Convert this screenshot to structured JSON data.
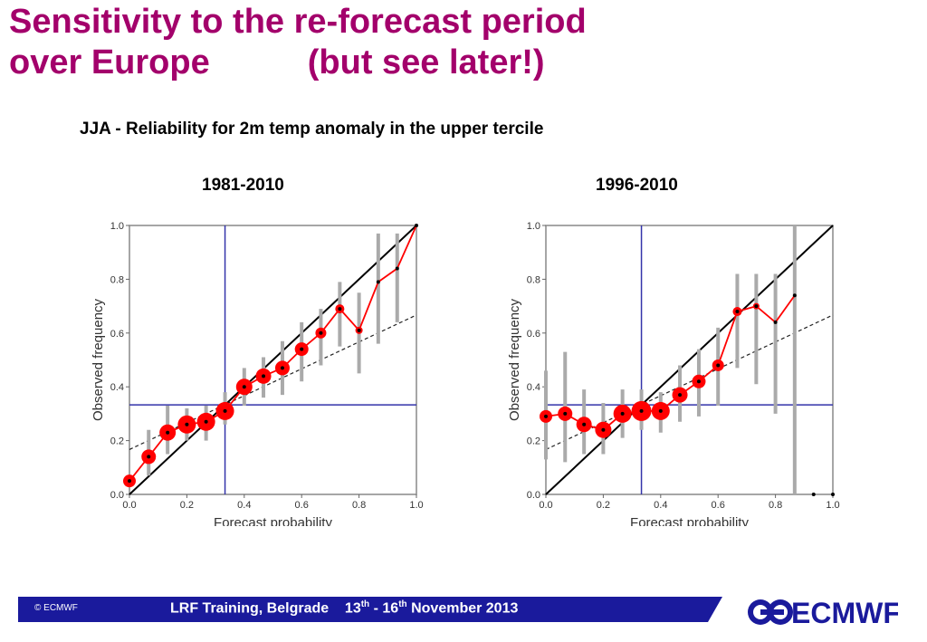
{
  "title": {
    "line1": "Sensitivity to the re-forecast period",
    "line2a": "over Europe",
    "line2b": "(but see later!)"
  },
  "subtitle": "JJA - Reliability for 2m temp anomaly  in the upper tercile",
  "footer": {
    "copyright": "© ECMWF",
    "event": "LRF Training, Belgrade",
    "date_start": "13",
    "date_start_sup": "th",
    "date_sep": " - ",
    "date_end": "16",
    "date_end_sup": "th",
    "date_rest": " November 2013",
    "logo_text": "ECMWF"
  },
  "colors": {
    "title": "#a3006b",
    "footer_bar": "#1a1a9c",
    "reliability_line": "#ff0000",
    "diagonal": "#000000",
    "climatology": "#3333aa",
    "error_bar": "#aaaaaa"
  },
  "chart_data": [
    {
      "type": "scatter",
      "period": "1981-2010",
      "xlabel": "Forecast probability",
      "ylabel": "Observed frequency",
      "xlim": [
        0,
        1
      ],
      "ylim": [
        0,
        1
      ],
      "xticks": [
        "0.0",
        "0.2",
        "0.4",
        "0.6",
        "0.8",
        "1.0"
      ],
      "yticks": [
        "0.0",
        "0.2",
        "0.4",
        "0.6",
        "0.8",
        "1.0"
      ],
      "climatology": 0.333,
      "no_skill_line": [
        [
          0,
          0.167
        ],
        [
          1,
          0.667
        ]
      ],
      "points": [
        {
          "x": 0.0,
          "y": 0.05,
          "lo": 0.04,
          "hi": 0.06,
          "size": 7
        },
        {
          "x": 0.067,
          "y": 0.14,
          "lo": 0.07,
          "hi": 0.24,
          "size": 8
        },
        {
          "x": 0.133,
          "y": 0.23,
          "lo": 0.15,
          "hi": 0.33,
          "size": 9
        },
        {
          "x": 0.2,
          "y": 0.26,
          "lo": 0.2,
          "hi": 0.32,
          "size": 10
        },
        {
          "x": 0.267,
          "y": 0.27,
          "lo": 0.2,
          "hi": 0.33,
          "size": 10
        },
        {
          "x": 0.333,
          "y": 0.31,
          "lo": 0.26,
          "hi": 0.38,
          "size": 10
        },
        {
          "x": 0.4,
          "y": 0.4,
          "lo": 0.33,
          "hi": 0.47,
          "size": 9
        },
        {
          "x": 0.467,
          "y": 0.44,
          "lo": 0.36,
          "hi": 0.51,
          "size": 8.5
        },
        {
          "x": 0.533,
          "y": 0.47,
          "lo": 0.37,
          "hi": 0.57,
          "size": 8
        },
        {
          "x": 0.6,
          "y": 0.54,
          "lo": 0.42,
          "hi": 0.64,
          "size": 7.5
        },
        {
          "x": 0.667,
          "y": 0.6,
          "lo": 0.48,
          "hi": 0.69,
          "size": 6
        },
        {
          "x": 0.733,
          "y": 0.69,
          "lo": 0.55,
          "hi": 0.79,
          "size": 5
        },
        {
          "x": 0.8,
          "y": 0.61,
          "lo": 0.45,
          "hi": 0.75,
          "size": 4
        },
        {
          "x": 0.867,
          "y": 0.79,
          "lo": 0.56,
          "hi": 0.97,
          "size": 2
        },
        {
          "x": 0.933,
          "y": 0.84,
          "lo": 0.64,
          "hi": 0.97,
          "size": 2
        },
        {
          "x": 1.0,
          "y": 1.0,
          "lo": 1.0,
          "hi": 1.0,
          "size": 2
        }
      ]
    },
    {
      "type": "scatter",
      "period": "1996-2010",
      "xlabel": "Forecast probability",
      "ylabel": "Observed frequency",
      "xlim": [
        0,
        1
      ],
      "ylim": [
        0,
        1
      ],
      "xticks": [
        "0.0",
        "0.2",
        "0.4",
        "0.6",
        "0.8",
        "1.0"
      ],
      "yticks": [
        "0.0",
        "0.2",
        "0.4",
        "0.6",
        "0.8",
        "1.0"
      ],
      "climatology": 0.333,
      "no_skill_line": [
        [
          0,
          0.167
        ],
        [
          1,
          0.667
        ]
      ],
      "points": [
        {
          "x": 0.0,
          "y": 0.29,
          "lo": 0.13,
          "hi": 0.46,
          "size": 7
        },
        {
          "x": 0.067,
          "y": 0.3,
          "lo": 0.12,
          "hi": 0.53,
          "size": 8
        },
        {
          "x": 0.133,
          "y": 0.26,
          "lo": 0.15,
          "hi": 0.39,
          "size": 8.5
        },
        {
          "x": 0.2,
          "y": 0.24,
          "lo": 0.15,
          "hi": 0.34,
          "size": 9
        },
        {
          "x": 0.267,
          "y": 0.3,
          "lo": 0.21,
          "hi": 0.39,
          "size": 10
        },
        {
          "x": 0.333,
          "y": 0.31,
          "lo": 0.24,
          "hi": 0.39,
          "size": 11
        },
        {
          "x": 0.4,
          "y": 0.31,
          "lo": 0.23,
          "hi": 0.38,
          "size": 10
        },
        {
          "x": 0.467,
          "y": 0.37,
          "lo": 0.27,
          "hi": 0.48,
          "size": 8.5
        },
        {
          "x": 0.533,
          "y": 0.42,
          "lo": 0.29,
          "hi": 0.54,
          "size": 7.5
        },
        {
          "x": 0.6,
          "y": 0.48,
          "lo": 0.33,
          "hi": 0.62,
          "size": 6.5
        },
        {
          "x": 0.667,
          "y": 0.68,
          "lo": 0.47,
          "hi": 0.82,
          "size": 5
        },
        {
          "x": 0.733,
          "y": 0.7,
          "lo": 0.41,
          "hi": 0.82,
          "size": 3.5
        },
        {
          "x": 0.8,
          "y": 0.64,
          "lo": 0.3,
          "hi": 0.82,
          "size": 2
        },
        {
          "x": 0.867,
          "y": 0.74,
          "lo": 0.0,
          "hi": 1.0,
          "size": 2
        },
        {
          "x": 0.933,
          "y": 0.0,
          "lo": 0.0,
          "hi": 0.0,
          "size": 2
        },
        {
          "x": 1.0,
          "y": 0.0,
          "lo": 0.0,
          "hi": 0.0,
          "size": 2
        }
      ]
    }
  ]
}
